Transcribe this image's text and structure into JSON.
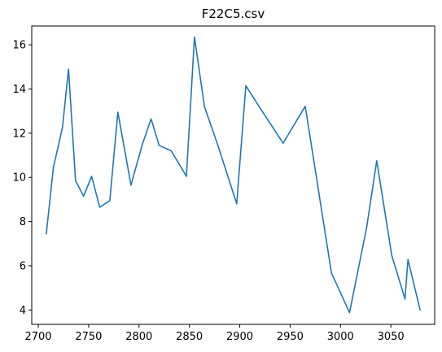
{
  "chart_data": {
    "type": "line",
    "title": "F22C5.csv",
    "xlabel": "",
    "ylabel": "",
    "xlim": [
      2693.5,
      3093.5
    ],
    "ylim": [
      3.35,
      16.85
    ],
    "x_ticks": [
      2700,
      2750,
      2800,
      2850,
      2900,
      2950,
      3000,
      3050
    ],
    "y_ticks": [
      4,
      6,
      8,
      10,
      12,
      14,
      16
    ],
    "grid": false,
    "legend": "none",
    "series": [
      {
        "color": "#1f77b4",
        "x": [
          2708,
          2715,
          2724,
          2730,
          2737,
          2745,
          2753,
          2761,
          2771,
          2779,
          2792,
          2803,
          2812,
          2820,
          2832,
          2847,
          2855,
          2865,
          2879,
          2897,
          2906,
          2920,
          2943,
          2965,
          2991,
          3009,
          3026,
          3036,
          3051,
          3064,
          3067,
          3079
        ],
        "y": [
          7.45,
          10.45,
          12.25,
          14.9,
          9.85,
          9.15,
          10.05,
          8.65,
          8.95,
          12.95,
          9.65,
          11.45,
          12.65,
          11.45,
          11.2,
          10.05,
          16.35,
          13.2,
          11.35,
          8.8,
          14.15,
          13.15,
          11.55,
          13.22,
          5.68,
          3.88,
          7.75,
          10.75,
          6.45,
          4.5,
          6.28,
          4.0
        ]
      }
    ]
  }
}
